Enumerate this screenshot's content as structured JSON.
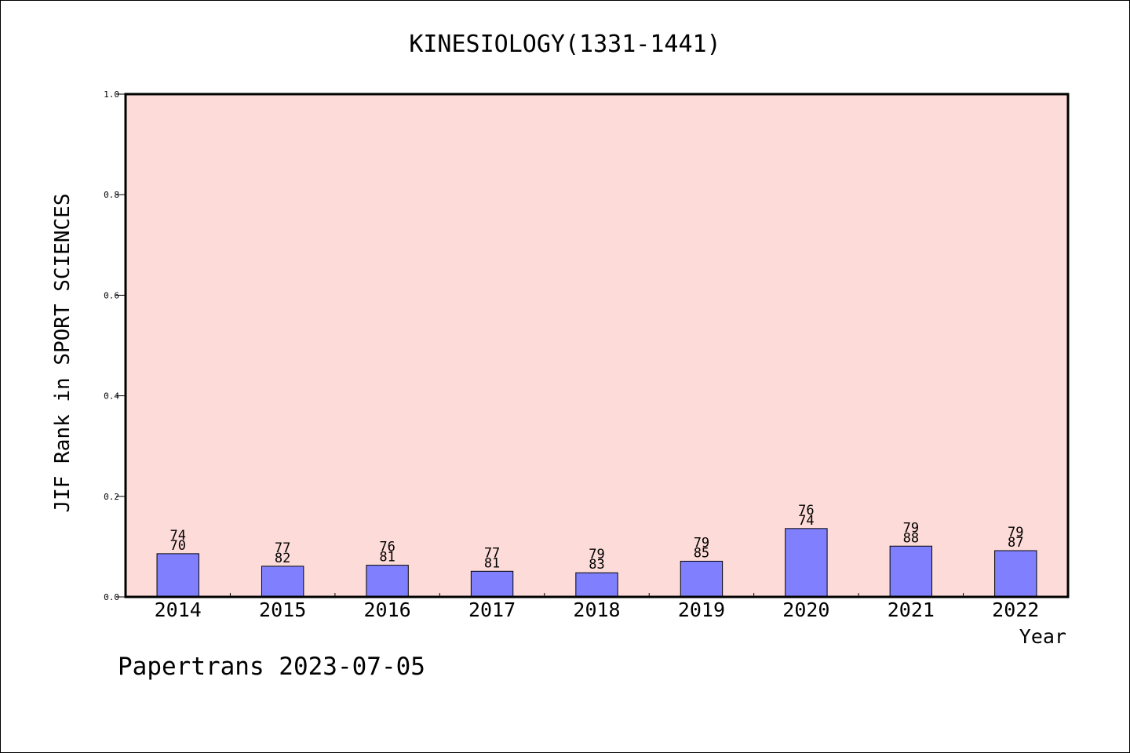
{
  "chart_data": {
    "type": "bar",
    "title": "KINESIOLOGY(1331-1441)",
    "xlabel": "Year",
    "ylabel": "JIF Rank in SPORT SCIENCES",
    "ylim": [
      0.0,
      1.0
    ],
    "yticks": [
      "0.0",
      "0.2",
      "0.4",
      "0.6",
      "0.8",
      "1.0"
    ],
    "categories": [
      "2014",
      "2015",
      "2016",
      "2017",
      "2018",
      "2019",
      "2020",
      "2021",
      "2022"
    ],
    "values": [
      0.086,
      0.061,
      0.063,
      0.051,
      0.048,
      0.071,
      0.136,
      0.101,
      0.092
    ],
    "label_top": [
      "74",
      "77",
      "76",
      "77",
      "79",
      "79",
      "76",
      "79",
      "79"
    ],
    "label_bottom": [
      "70",
      "82",
      "81",
      "81",
      "83",
      "85",
      "74",
      "88",
      "87"
    ],
    "grid": false,
    "colors": {
      "plot_background": "#fddbd8",
      "bar_fill": "#8080ff",
      "bar_edge": "#000000"
    }
  },
  "footer": "Papertrans 2023-07-05"
}
